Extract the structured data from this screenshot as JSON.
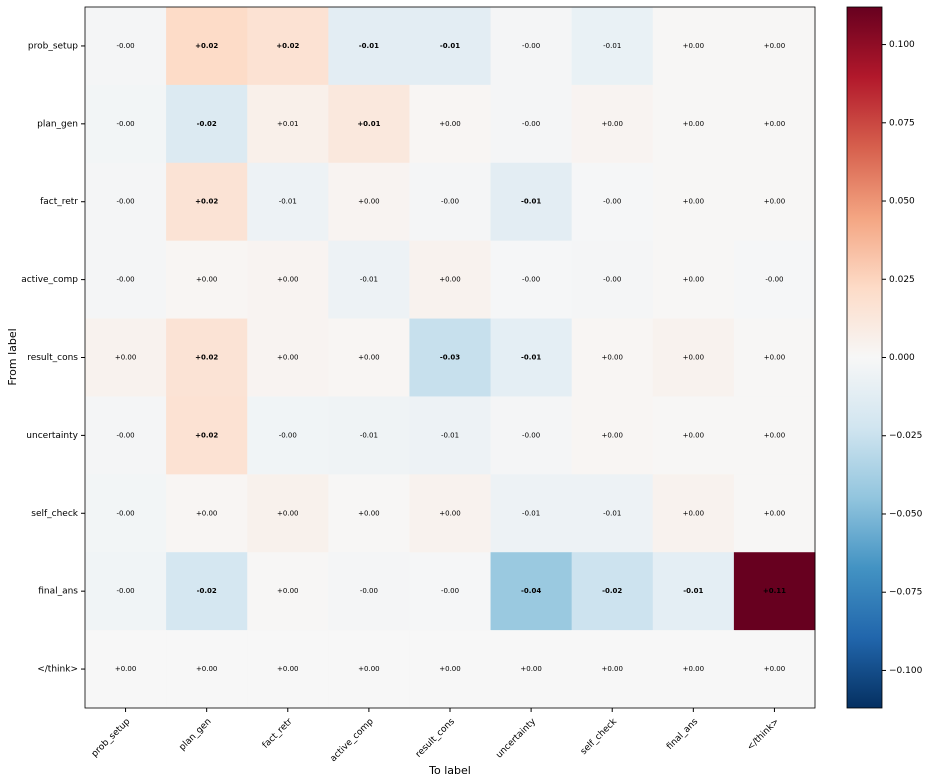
{
  "chart_data": {
    "type": "heatmap",
    "xlabel": "To label",
    "ylabel": "From label",
    "x": [
      "prob_setup",
      "plan_gen",
      "fact_retr",
      "active_comp",
      "result_cons",
      "uncertainty",
      "self_check",
      "final_ans",
      "</think>"
    ],
    "y": [
      "prob_setup",
      "plan_gen",
      "fact_retr",
      "active_comp",
      "result_cons",
      "uncertainty",
      "self_check",
      "final_ans",
      "</think>"
    ],
    "values": [
      [
        -0.002,
        0.022,
        0.017,
        -0.012,
        -0.012,
        -0.002,
        -0.008,
        0.001,
        0.001
      ],
      [
        -0.003,
        -0.016,
        0.006,
        0.012,
        0.002,
        -0.002,
        0.003,
        0.001,
        0.001
      ],
      [
        -0.002,
        0.016,
        -0.006,
        0.003,
        -0.002,
        -0.012,
        -0.001,
        0.001,
        0.001
      ],
      [
        -0.002,
        0.002,
        0.003,
        -0.006,
        0.004,
        -0.001,
        -0.002,
        0.001,
        -0.001
      ],
      [
        0.004,
        0.016,
        0.003,
        0.002,
        -0.026,
        -0.011,
        0.002,
        0.004,
        0.001
      ],
      [
        -0.002,
        0.017,
        -0.004,
        -0.005,
        -0.006,
        -0.002,
        0.002,
        0.001,
        0.001
      ],
      [
        -0.003,
        0.002,
        0.005,
        0.001,
        0.004,
        -0.006,
        -0.006,
        0.004,
        0.001
      ],
      [
        -0.004,
        -0.02,
        0.001,
        -0.002,
        -0.001,
        -0.042,
        -0.024,
        -0.011,
        0.112
      ],
      [
        0,
        0,
        0,
        0,
        0,
        0,
        0,
        0,
        0
      ]
    ],
    "value_labels": [
      [
        "-0.00",
        "+0.02",
        "+0.02",
        "-0.01",
        "-0.01",
        "-0.00",
        "-0.01",
        "+0.00",
        "+0.00"
      ],
      [
        "-0.00",
        "-0.02",
        "+0.01",
        "+0.01",
        "+0.00",
        "-0.00",
        "+0.00",
        "+0.00",
        "+0.00"
      ],
      [
        "-0.00",
        "+0.02",
        "-0.01",
        "+0.00",
        "-0.00",
        "-0.01",
        "-0.00",
        "+0.00",
        "+0.00"
      ],
      [
        "-0.00",
        "+0.00",
        "+0.00",
        "-0.01",
        "+0.00",
        "-0.00",
        "-0.00",
        "+0.00",
        "-0.00"
      ],
      [
        "+0.00",
        "+0.02",
        "+0.00",
        "+0.00",
        "-0.03",
        "-0.01",
        "+0.00",
        "+0.00",
        "+0.00"
      ],
      [
        "-0.00",
        "+0.02",
        "-0.00",
        "-0.01",
        "-0.01",
        "-0.00",
        "+0.00",
        "+0.00",
        "+0.00"
      ],
      [
        "-0.00",
        "+0.00",
        "+0.00",
        "+0.00",
        "+0.00",
        "-0.01",
        "-0.01",
        "+0.00",
        "+0.00"
      ],
      [
        "-0.00",
        "-0.02",
        "+0.00",
        "-0.00",
        "-0.00",
        "-0.04",
        "-0.02",
        "-0.01",
        "+0.11"
      ],
      [
        "+0.00",
        "+0.00",
        "+0.00",
        "+0.00",
        "+0.00",
        "+0.00",
        "+0.00",
        "+0.00",
        "+0.00"
      ]
    ],
    "colormap": [
      "#053061",
      "#2166ac",
      "#4393c3",
      "#92c5de",
      "#d1e5f0",
      "#f7f7f7",
      "#fddbc7",
      "#f4a582",
      "#d6604d",
      "#b2182b",
      "#67001f"
    ],
    "clim": [
      -0.112,
      0.112
    ],
    "cticks": [
      {
        "value": -0.1,
        "label": "−0.100"
      },
      {
        "value": -0.075,
        "label": "−0.075"
      },
      {
        "value": -0.05,
        "label": "−0.050"
      },
      {
        "value": -0.025,
        "label": "−0.025"
      },
      {
        "value": 0,
        "label": "0.000"
      },
      {
        "value": 0.025,
        "label": "0.025"
      },
      {
        "value": 0.05,
        "label": "0.050"
      },
      {
        "value": 0.075,
        "label": "0.075"
      },
      {
        "value": 0.1,
        "label": "0.100"
      }
    ]
  }
}
